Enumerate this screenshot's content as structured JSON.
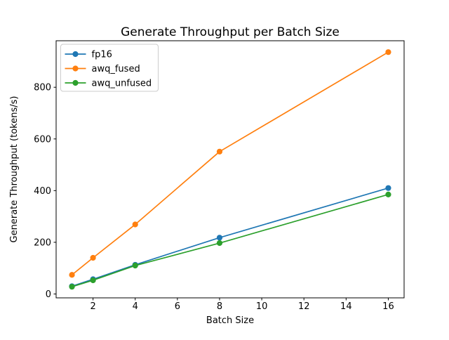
{
  "chart_data": {
    "type": "line",
    "title": "Generate Throughput per Batch Size",
    "xlabel": "Batch Size",
    "ylabel": "Generate Throughput (tokens/s)",
    "x": [
      1,
      2,
      4,
      8,
      16
    ],
    "series": [
      {
        "name": "fp16",
        "color": "#1f77b4",
        "values": [
          30,
          57,
          113,
          218,
          410
        ]
      },
      {
        "name": "awq_fused",
        "color": "#ff7f0e",
        "values": [
          74,
          140,
          269,
          551,
          936
        ]
      },
      {
        "name": "awq_unfused",
        "color": "#2ca02c",
        "values": [
          28,
          53,
          110,
          197,
          385
        ]
      }
    ],
    "xticks": [
      2,
      4,
      6,
      8,
      10,
      12,
      14,
      16
    ],
    "yticks": [
      0,
      200,
      400,
      600,
      800
    ],
    "xlim": [
      0.25,
      16.75
    ],
    "ylim": [
      -15,
      980
    ],
    "legend_position": "upper left",
    "grid": false,
    "marker": "o",
    "line_style": "solid",
    "background_color": "#ffffff",
    "spine_color": "#000000"
  }
}
